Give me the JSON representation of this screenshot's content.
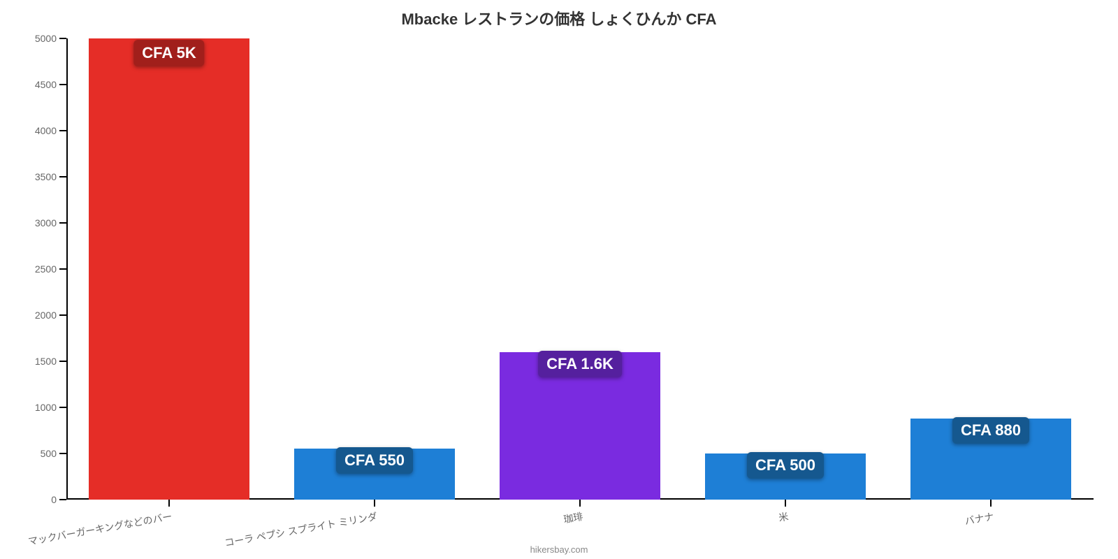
{
  "chart": {
    "type": "bar",
    "title": "Mbacke レストランの価格 しょくひんか CFA",
    "title_fontsize": 22,
    "title_color": "#333333",
    "background_color": "#ffffff",
    "axis_color": "#000000",
    "tick_font_color": "#666666",
    "tick_fontsize": 14,
    "xtick_fontsize": 14,
    "xtick_rotation_deg": -10,
    "ylim": [
      0,
      5000
    ],
    "ytick_step": 500,
    "yticks": [
      0,
      500,
      1000,
      1500,
      2000,
      2500,
      3000,
      3500,
      4000,
      4500,
      5000
    ],
    "bar_width_ratio": 0.78,
    "value_label_fontsize": 22,
    "value_label_text_color": "#ffffff",
    "categories": [
      "マックバーガーキングなどのバー",
      "コーラ ペプシ スプライト ミリンダ",
      "珈琲",
      "米",
      "バナナ"
    ],
    "values": [
      5000,
      550,
      1600,
      500,
      880
    ],
    "value_labels": [
      "CFA 5K",
      "CFA 550",
      "CFA 1.6K",
      "CFA 500",
      "CFA 880"
    ],
    "bar_colors": [
      "#e52d27",
      "#1e7fd6",
      "#7a2be0",
      "#1e7fd6",
      "#1e7fd6"
    ],
    "value_badge_bg": [
      "#a11f1b",
      "#15588f",
      "#55209e",
      "#15588f",
      "#15588f"
    ],
    "attribution": "hikersbay.com",
    "attribution_fontsize": 13,
    "attribution_color": "#888888"
  }
}
